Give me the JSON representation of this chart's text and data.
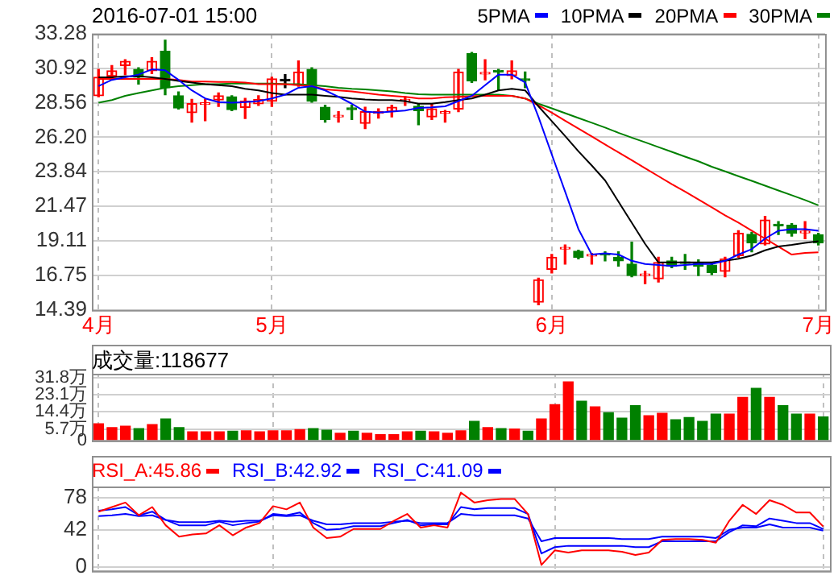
{
  "chart_data": [
    {
      "type": "candlestick",
      "title": "2016-07-01 15:00",
      "legend": "top right",
      "grid": true,
      "categories": [
        "4月",
        null,
        null,
        null,
        null,
        null,
        null,
        null,
        null,
        null,
        null,
        null,
        null,
        "5月",
        null,
        null,
        null,
        null,
        null,
        null,
        null,
        null,
        null,
        null,
        null,
        null,
        null,
        null,
        null,
        null,
        null,
        null,
        null,
        null,
        "6月",
        null,
        null,
        null,
        null,
        null,
        null,
        null,
        null,
        null,
        null,
        null,
        null,
        null,
        null,
        null,
        null,
        null,
        null,
        null,
        "7月"
      ],
      "ylim": [
        14.39,
        33.28
      ],
      "yticks": [
        14.39,
        16.75,
        19.11,
        21.47,
        23.84,
        {
          "value": 26.2,
          "label": "26.20"
        },
        28.56,
        30.92,
        33.28
      ],
      "ohlc": [
        [
          29.04,
          30.85,
          28.97,
          30.31
        ],
        [
          30.38,
          31.11,
          30.2,
          30.75
        ],
        [
          31.11,
          31.51,
          30.49,
          31.4
        ],
        [
          30.85,
          30.96,
          29.84,
          30.31
        ],
        [
          30.75,
          31.65,
          30.56,
          31.4
        ],
        [
          32.09,
          32.85,
          29.12,
          29.59
        ],
        [
          29.04,
          29.3,
          28.14,
          28.21
        ],
        [
          27.89,
          28.79,
          27.24,
          28.5
        ],
        [
          28.45,
          28.79,
          27.34,
          28.5
        ],
        [
          28.76,
          29.23,
          28.32,
          29.04
        ],
        [
          28.97,
          29.04,
          28.03,
          28.1
        ],
        [
          28.25,
          28.86,
          27.49,
          28.68
        ],
        [
          28.5,
          29.04,
          28.39,
          28.79
        ],
        [
          28.68,
          30.31,
          28.32,
          30.2
        ],
        [
          30.06,
          30.49,
          29.59,
          30.06
        ],
        [
          29.77,
          31.43,
          29.7,
          30.67
        ],
        [
          30.85,
          30.96,
          28.61,
          28.68
        ],
        [
          28.25,
          28.39,
          27.24,
          27.42
        ],
        [
          27.6,
          27.96,
          27.24,
          27.67
        ],
        [
          28.14,
          28.39,
          27.42,
          28.1
        ],
        [
          27.16,
          28.25,
          26.8,
          27.96
        ],
        [
          27.85,
          28.14,
          27.52,
          27.89
        ],
        [
          27.96,
          28.39,
          27.6,
          28.25
        ],
        [
          28.68,
          28.97,
          28.39,
          28.72
        ],
        [
          28.32,
          28.5,
          27.06,
          28.03
        ],
        [
          27.6,
          28.5,
          27.42,
          28.14
        ],
        [
          27.85,
          28.03,
          27.24,
          27.89
        ],
        [
          28.14,
          30.85,
          27.96,
          30.67
        ],
        [
          31.94,
          32.01,
          29.95,
          30.06
        ],
        [
          30.53,
          31.51,
          30.13,
          30.57
        ],
        [
          30.71,
          30.85,
          29.41,
          30.67
        ],
        [
          30.42,
          31.43,
          30.2,
          30.75
        ],
        [
          30.13,
          30.67,
          29.59,
          30.09
        ],
        [
          14.93,
          16.56,
          14.75,
          16.45
        ],
        [
          17.17,
          18.18,
          16.92,
          18.0
        ],
        [
          18.56,
          18.84,
          17.53,
          18.62
        ],
        [
          18.4,
          18.47,
          17.89,
          18.0
        ],
        [
          18.08,
          18.26,
          17.53,
          18.12
        ],
        [
          18.19,
          18.37,
          17.75,
          18.15
        ],
        [
          18.0,
          18.37,
          17.39,
          17.75
        ],
        [
          17.53,
          19.02,
          16.66,
          16.74
        ],
        [
          16.74,
          17.03,
          16.19,
          16.81
        ],
        [
          16.52,
          18.0,
          16.3,
          17.64
        ],
        [
          17.75,
          18.0,
          17.28,
          17.39
        ],
        [
          17.61,
          18.18,
          17.17,
          17.57
        ],
        [
          17.61,
          17.82,
          16.74,
          17.39
        ],
        [
          17.46,
          17.64,
          16.81,
          16.95
        ],
        [
          17.03,
          18.0,
          16.66,
          17.89
        ],
        [
          18.11,
          19.81,
          18.0,
          19.63
        ],
        [
          19.56,
          19.7,
          18.37,
          18.98
        ],
        [
          18.91,
          20.79,
          18.84,
          20.54
        ],
        [
          20.18,
          20.43,
          19.56,
          20.14
        ],
        [
          20.18,
          20.29,
          19.45,
          19.63
        ],
        [
          19.67,
          20.43,
          19.27,
          19.71
        ],
        [
          19.53,
          19.63,
          18.84,
          18.98
        ]
      ],
      "colors": [
        "#ff0000",
        "#ff0000",
        "#ff0000",
        "#008000",
        "#ff0000",
        "#008000",
        "#008000",
        "#ff0000",
        "#ff0000",
        "#ff0000",
        "#008000",
        "#ff0000",
        "#ff0000",
        "#ff0000",
        "#000000",
        "#ff0000",
        "#008000",
        "#008000",
        "#ff0000",
        "#008000",
        "#ff0000",
        "#ff0000",
        "#ff0000",
        "#ff0000",
        "#008000",
        "#ff0000",
        "#ff0000",
        "#ff0000",
        "#008000",
        "#ff0000",
        "#008000",
        "#ff0000",
        "#008000",
        "#ff0000",
        "#ff0000",
        "#ff0000",
        "#008000",
        "#ff0000",
        "#008000",
        "#008000",
        "#008000",
        "#ff0000",
        "#ff0000",
        "#008000",
        "#008000",
        "#008000",
        "#008000",
        "#ff0000",
        "#ff0000",
        "#008000",
        "#ff0000",
        "#008000",
        "#008000",
        "#ff0000",
        "#008000"
      ],
      "series": [
        {
          "type": "line",
          "name": "5PMA",
          "color": "#0000ff",
          "values": [
            29.7,
            30.13,
            30.31,
            30.49,
            30.85,
            30.78,
            30.13,
            29.41,
            28.86,
            28.61,
            28.57,
            28.61,
            28.68,
            28.86,
            29.12,
            29.59,
            29.7,
            29.41,
            28.97,
            28.5,
            27.96,
            27.89,
            27.96,
            28.03,
            28.21,
            28.25,
            28.32,
            28.68,
            29.04,
            29.77,
            30.49,
            30.49,
            29.95,
            27.6,
            25.03,
            22.49,
            19.92,
            18.18,
            18.26,
            18.18,
            17.75,
            17.53,
            17.46,
            17.39,
            17.46,
            17.53,
            17.53,
            17.75,
            18.18,
            18.55,
            19.27,
            19.81,
            19.92,
            19.92,
            19.81
          ]
        },
        {
          "type": "line",
          "name": "10PMA",
          "color": "#000000",
          "values": [
            30.31,
            30.31,
            30.38,
            30.38,
            30.31,
            30.2,
            30.06,
            29.95,
            29.84,
            29.77,
            29.7,
            29.52,
            29.41,
            29.23,
            29.12,
            29.12,
            29.12,
            29.04,
            28.97,
            28.86,
            28.79,
            28.75,
            28.75,
            28.68,
            28.5,
            28.5,
            28.61,
            28.75,
            28.86,
            29.12,
            29.41,
            29.52,
            29.41,
            28.32,
            27.31,
            26.29,
            25.24,
            24.27,
            23.25,
            21.8,
            20.36,
            18.91,
            17.64,
            17.64,
            17.64,
            17.64,
            17.64,
            17.75,
            17.89,
            18.11,
            18.47,
            18.73,
            18.84,
            18.98,
            19.09
          ]
        },
        {
          "type": "line",
          "name": "20PMA",
          "color": "#ff0000",
          "values": [
            30.2,
            30.2,
            30.2,
            30.2,
            30.2,
            30.2,
            30.13,
            30.02,
            30.02,
            29.99,
            29.99,
            29.95,
            29.84,
            29.84,
            29.84,
            29.77,
            29.7,
            29.48,
            29.41,
            29.34,
            29.23,
            29.12,
            29.04,
            28.97,
            28.86,
            28.86,
            28.94,
            28.97,
            29.01,
            29.04,
            29.04,
            29.04,
            28.86,
            28.39,
            27.89,
            27.34,
            26.8,
            26.26,
            25.71,
            25.17,
            24.63,
            24.09,
            23.54,
            23.0,
            22.49,
            21.95,
            21.41,
            20.86,
            20.36,
            19.81,
            19.27,
            18.73,
            18.18,
            18.29,
            18.33
          ]
        },
        {
          "type": "line",
          "name": "30PMA",
          "color": "#008000",
          "values": [
            28.57,
            28.75,
            29.04,
            29.23,
            29.41,
            29.59,
            29.7,
            29.77,
            29.84,
            29.84,
            29.88,
            29.88,
            29.88,
            29.88,
            29.84,
            29.84,
            29.77,
            29.7,
            29.59,
            29.52,
            29.48,
            29.41,
            29.34,
            29.23,
            29.15,
            29.12,
            29.12,
            29.12,
            29.12,
            29.12,
            29.12,
            29.04,
            28.86,
            28.5,
            28.18,
            27.85,
            27.52,
            27.2,
            26.87,
            26.51,
            26.18,
            25.86,
            25.53,
            25.21,
            24.88,
            24.56,
            24.19,
            23.87,
            23.54,
            23.22,
            22.89,
            22.56,
            22.24,
            21.91,
            21.55
          ]
        }
      ]
    },
    {
      "type": "bar",
      "tick_labels": "y",
      "grid": true,
      "annotations": [
        "成交量:118677"
      ],
      "categories": [
        null,
        null,
        null,
        null,
        null,
        null,
        null,
        null,
        null,
        null,
        null,
        null,
        null,
        null,
        null,
        null,
        null,
        null,
        null,
        null,
        null,
        null,
        null,
        null,
        null,
        null,
        null,
        null,
        null,
        null,
        null,
        null,
        null,
        null,
        null,
        null,
        null,
        null,
        null,
        null,
        null,
        null,
        null,
        null,
        null,
        null,
        null,
        null,
        null,
        null,
        null,
        null,
        null,
        null,
        null
      ],
      "ylim": [
        0,
        33.7
      ],
      "yticks": [
        0,
        {
          "value": 5.7,
          "label": "5.7万"
        },
        {
          "value": 14.4,
          "label": "14.4万"
        },
        {
          "value": 23.1,
          "label": "23.1万"
        },
        {
          "value": 31.8,
          "label": "31.8万"
        }
      ],
      "values": [
        8.4,
        6.5,
        7.2,
        6.0,
        8.0,
        10.8,
        6.5,
        4.3,
        4.3,
        4.3,
        4.6,
        4.8,
        4.3,
        4.8,
        4.8,
        5.5,
        6.0,
        5.1,
        3.6,
        4.6,
        3.6,
        2.9,
        2.9,
        4.3,
        4.6,
        4.3,
        3.6,
        4.8,
        9.6,
        6.5,
        6.0,
        5.8,
        4.6,
        10.8,
        18.1,
        29.6,
        19.8,
        16.9,
        14.0,
        11.3,
        17.6,
        12.5,
        13.7,
        10.4,
        11.6,
        9.6,
        13.3,
        13.3,
        21.7,
        26.3,
        21.7,
        17.6,
        13.3,
        13.3,
        11.87
      ],
      "colors": [
        "#ff0000",
        "#ff0000",
        "#ff0000",
        "#008000",
        "#ff0000",
        "#008000",
        "#008000",
        "#ff0000",
        "#ff0000",
        "#ff0000",
        "#008000",
        "#ff0000",
        "#ff0000",
        "#ff0000",
        "#ff0000",
        "#ff0000",
        "#008000",
        "#008000",
        "#ff0000",
        "#008000",
        "#ff0000",
        "#ff0000",
        "#ff0000",
        "#ff0000",
        "#008000",
        "#ff0000",
        "#ff0000",
        "#ff0000",
        "#008000",
        "#ff0000",
        "#008000",
        "#ff0000",
        "#008000",
        "#ff0000",
        "#ff0000",
        "#ff0000",
        "#008000",
        "#ff0000",
        "#008000",
        "#008000",
        "#008000",
        "#ff0000",
        "#ff0000",
        "#008000",
        "#008000",
        "#008000",
        "#008000",
        "#ff0000",
        "#ff0000",
        "#008000",
        "#ff0000",
        "#008000",
        "#008000",
        "#ff0000",
        "#008000"
      ]
    },
    {
      "type": "line",
      "tick_labels": "y",
      "grid": true,
      "legend": "top left",
      "categories": [
        null,
        null,
        null,
        null,
        null,
        null,
        null,
        null,
        null,
        null,
        null,
        null,
        null,
        null,
        null,
        null,
        null,
        null,
        null,
        null,
        null,
        null,
        null,
        null,
        null,
        null,
        null,
        null,
        null,
        null,
        null,
        null,
        null,
        null,
        null,
        null,
        null,
        null,
        null,
        null,
        null,
        null,
        null,
        null,
        null,
        null,
        null,
        null,
        null,
        null,
        null,
        null,
        null,
        null,
        null
      ],
      "ylim": [
        -4,
        91
      ],
      "yticks": [
        0,
        42,
        78
      ],
      "series": [
        {
          "name": "RSI_A:45.86",
          "color": "#ff0000",
          "values": [
            62.6,
            67.8,
            72.9,
            58.5,
            67.8,
            47.2,
            34.3,
            36.9,
            37.9,
            47.2,
            35.9,
            44.6,
            49.7,
            68.8,
            65.2,
            72.9,
            44.6,
            32.8,
            34.3,
            43.0,
            43.0,
            43.0,
            52.3,
            60.0,
            44.6,
            47.2,
            44.6,
            84.2,
            72.9,
            75.5,
            77.0,
            77.0,
            60.0,
            2.4,
            18.9,
            16.3,
            18.9,
            18.9,
            18.9,
            17.3,
            13.7,
            16.3,
            30.7,
            31.7,
            31.7,
            30.7,
            27.6,
            52.3,
            70.3,
            60.0,
            75.5,
            70.3,
            61.6,
            61.6,
            45.86
          ]
        },
        {
          "name": "RSI_B:42.92",
          "color": "#0000ff",
          "values": [
            63.6,
            65.2,
            67.8,
            58.5,
            62.6,
            53.3,
            47.2,
            47.2,
            47.2,
            51.3,
            47.2,
            49.7,
            51.3,
            60.0,
            58.5,
            61.6,
            49.7,
            42.0,
            43.0,
            46.1,
            46.1,
            46.1,
            49.7,
            53.3,
            47.2,
            48.2,
            48.2,
            67.8,
            65.2,
            66.7,
            66.7,
            66.7,
            60.0,
            15.3,
            22.5,
            24.0,
            24.0,
            24.0,
            24.0,
            24.0,
            22.5,
            22.5,
            29.2,
            29.2,
            29.2,
            29.2,
            29.2,
            39.5,
            47.2,
            46.1,
            54.9,
            52.3,
            49.7,
            49.7,
            42.92
          ]
        },
        {
          "name": "RSI_C:41.09",
          "color": "#0000ff",
          "values": [
            57.5,
            58.5,
            60.0,
            57.5,
            58.5,
            53.3,
            50.8,
            50.8,
            50.8,
            52.3,
            51.3,
            52.3,
            52.3,
            58.5,
            57.5,
            58.5,
            52.3,
            48.2,
            48.2,
            49.7,
            49.7,
            49.7,
            51.3,
            52.3,
            49.7,
            49.7,
            49.7,
            60.0,
            58.5,
            58.5,
            58.5,
            58.5,
            54.9,
            29.2,
            32.8,
            32.8,
            32.8,
            32.8,
            32.8,
            31.7,
            31.7,
            31.7,
            34.3,
            34.3,
            34.3,
            34.3,
            32.8,
            42.0,
            44.6,
            44.6,
            48.2,
            44.6,
            44.6,
            44.6,
            41.09
          ]
        }
      ]
    }
  ]
}
